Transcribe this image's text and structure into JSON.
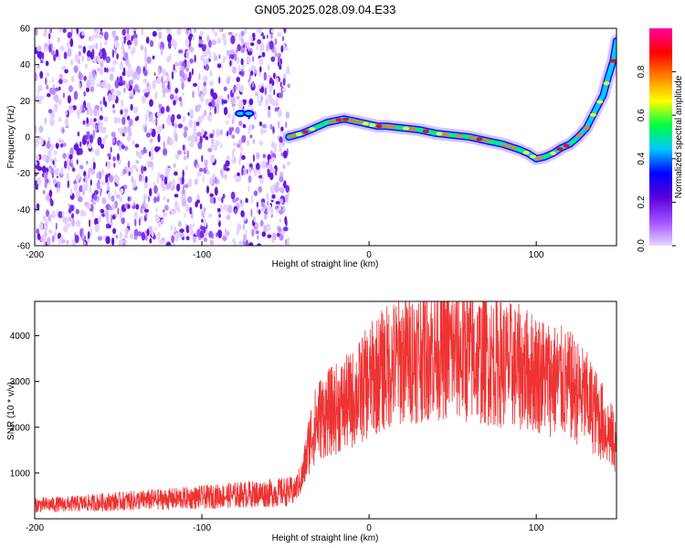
{
  "title": "GN05.2025.028.09.04.E33",
  "chart_data": [
    {
      "type": "heatmap",
      "xlabel": "Height of straight line (km)",
      "ylabel": "Frequency (Hz)",
      "xlim": [
        -200,
        148
      ],
      "ylim": [
        -60,
        60
      ],
      "xticks": [
        -200,
        -100,
        0,
        100
      ],
      "yticks": [
        -60,
        -40,
        -20,
        0,
        20,
        40,
        60
      ],
      "colorbar": {
        "label": "Normalized spectral amplitude",
        "range": [
          0,
          1
        ],
        "ticks": [
          "0.0",
          "0.2",
          "0.4",
          "0.6",
          "0.8"
        ],
        "colors": [
          "#e8d6ff",
          "#a050ff",
          "#5a00d8",
          "#0000ff",
          "#00c8ff",
          "#00ff40",
          "#ffff00",
          "#ff8000",
          "#ff0000",
          "#ff00a0"
        ]
      },
      "noise_region": {
        "x_from": -200,
        "x_to": -48
      },
      "track": {
        "x": [
          -48,
          -44,
          -40,
          -35,
          -30,
          -25,
          -20,
          -15,
          -10,
          -5,
          0,
          5,
          10,
          20,
          30,
          40,
          50,
          60,
          70,
          80,
          90,
          95,
          100,
          105,
          110,
          115,
          120,
          125,
          130,
          135,
          140,
          143,
          146,
          148
        ],
        "y": [
          0,
          1,
          2,
          4,
          6,
          8,
          9,
          10,
          9,
          8,
          7,
          6,
          6,
          5,
          4,
          2,
          1,
          0,
          -2,
          -4,
          -7,
          -9,
          -12,
          -11,
          -9,
          -6,
          -4,
          0,
          5,
          14,
          23,
          33,
          42,
          53
        ]
      },
      "isolated_blobs": [
        {
          "x": -77,
          "y": 13
        },
        {
          "x": -72,
          "y": 13
        }
      ]
    },
    {
      "type": "line",
      "xlabel": "Height of straight line (km)",
      "ylabel": "SNR (10 * v/v)",
      "xlim": [
        -200,
        148
      ],
      "ylim": [
        0,
        4750
      ],
      "xticks": [
        -200,
        -100,
        0,
        100
      ],
      "yticks": [
        1000,
        2000,
        3000,
        4000
      ],
      "series": [
        {
          "color": "#ee3333",
          "x": [
            -200,
            -180,
            -160,
            -140,
            -120,
            -100,
            -80,
            -60,
            -45,
            -40,
            -35,
            -30,
            -20,
            -10,
            0,
            10,
            20,
            30,
            40,
            50,
            60,
            70,
            80,
            90,
            100,
            110,
            120,
            130,
            140,
            148
          ],
          "y": [
            300,
            320,
            360,
            400,
            430,
            470,
            520,
            560,
            600,
            900,
            1800,
            2200,
            2400,
            2600,
            3000,
            3300,
            3500,
            3600,
            3700,
            3650,
            3550,
            3500,
            3400,
            3300,
            3200,
            3050,
            2900,
            2600,
            2100,
            1600
          ]
        }
      ]
    }
  ]
}
